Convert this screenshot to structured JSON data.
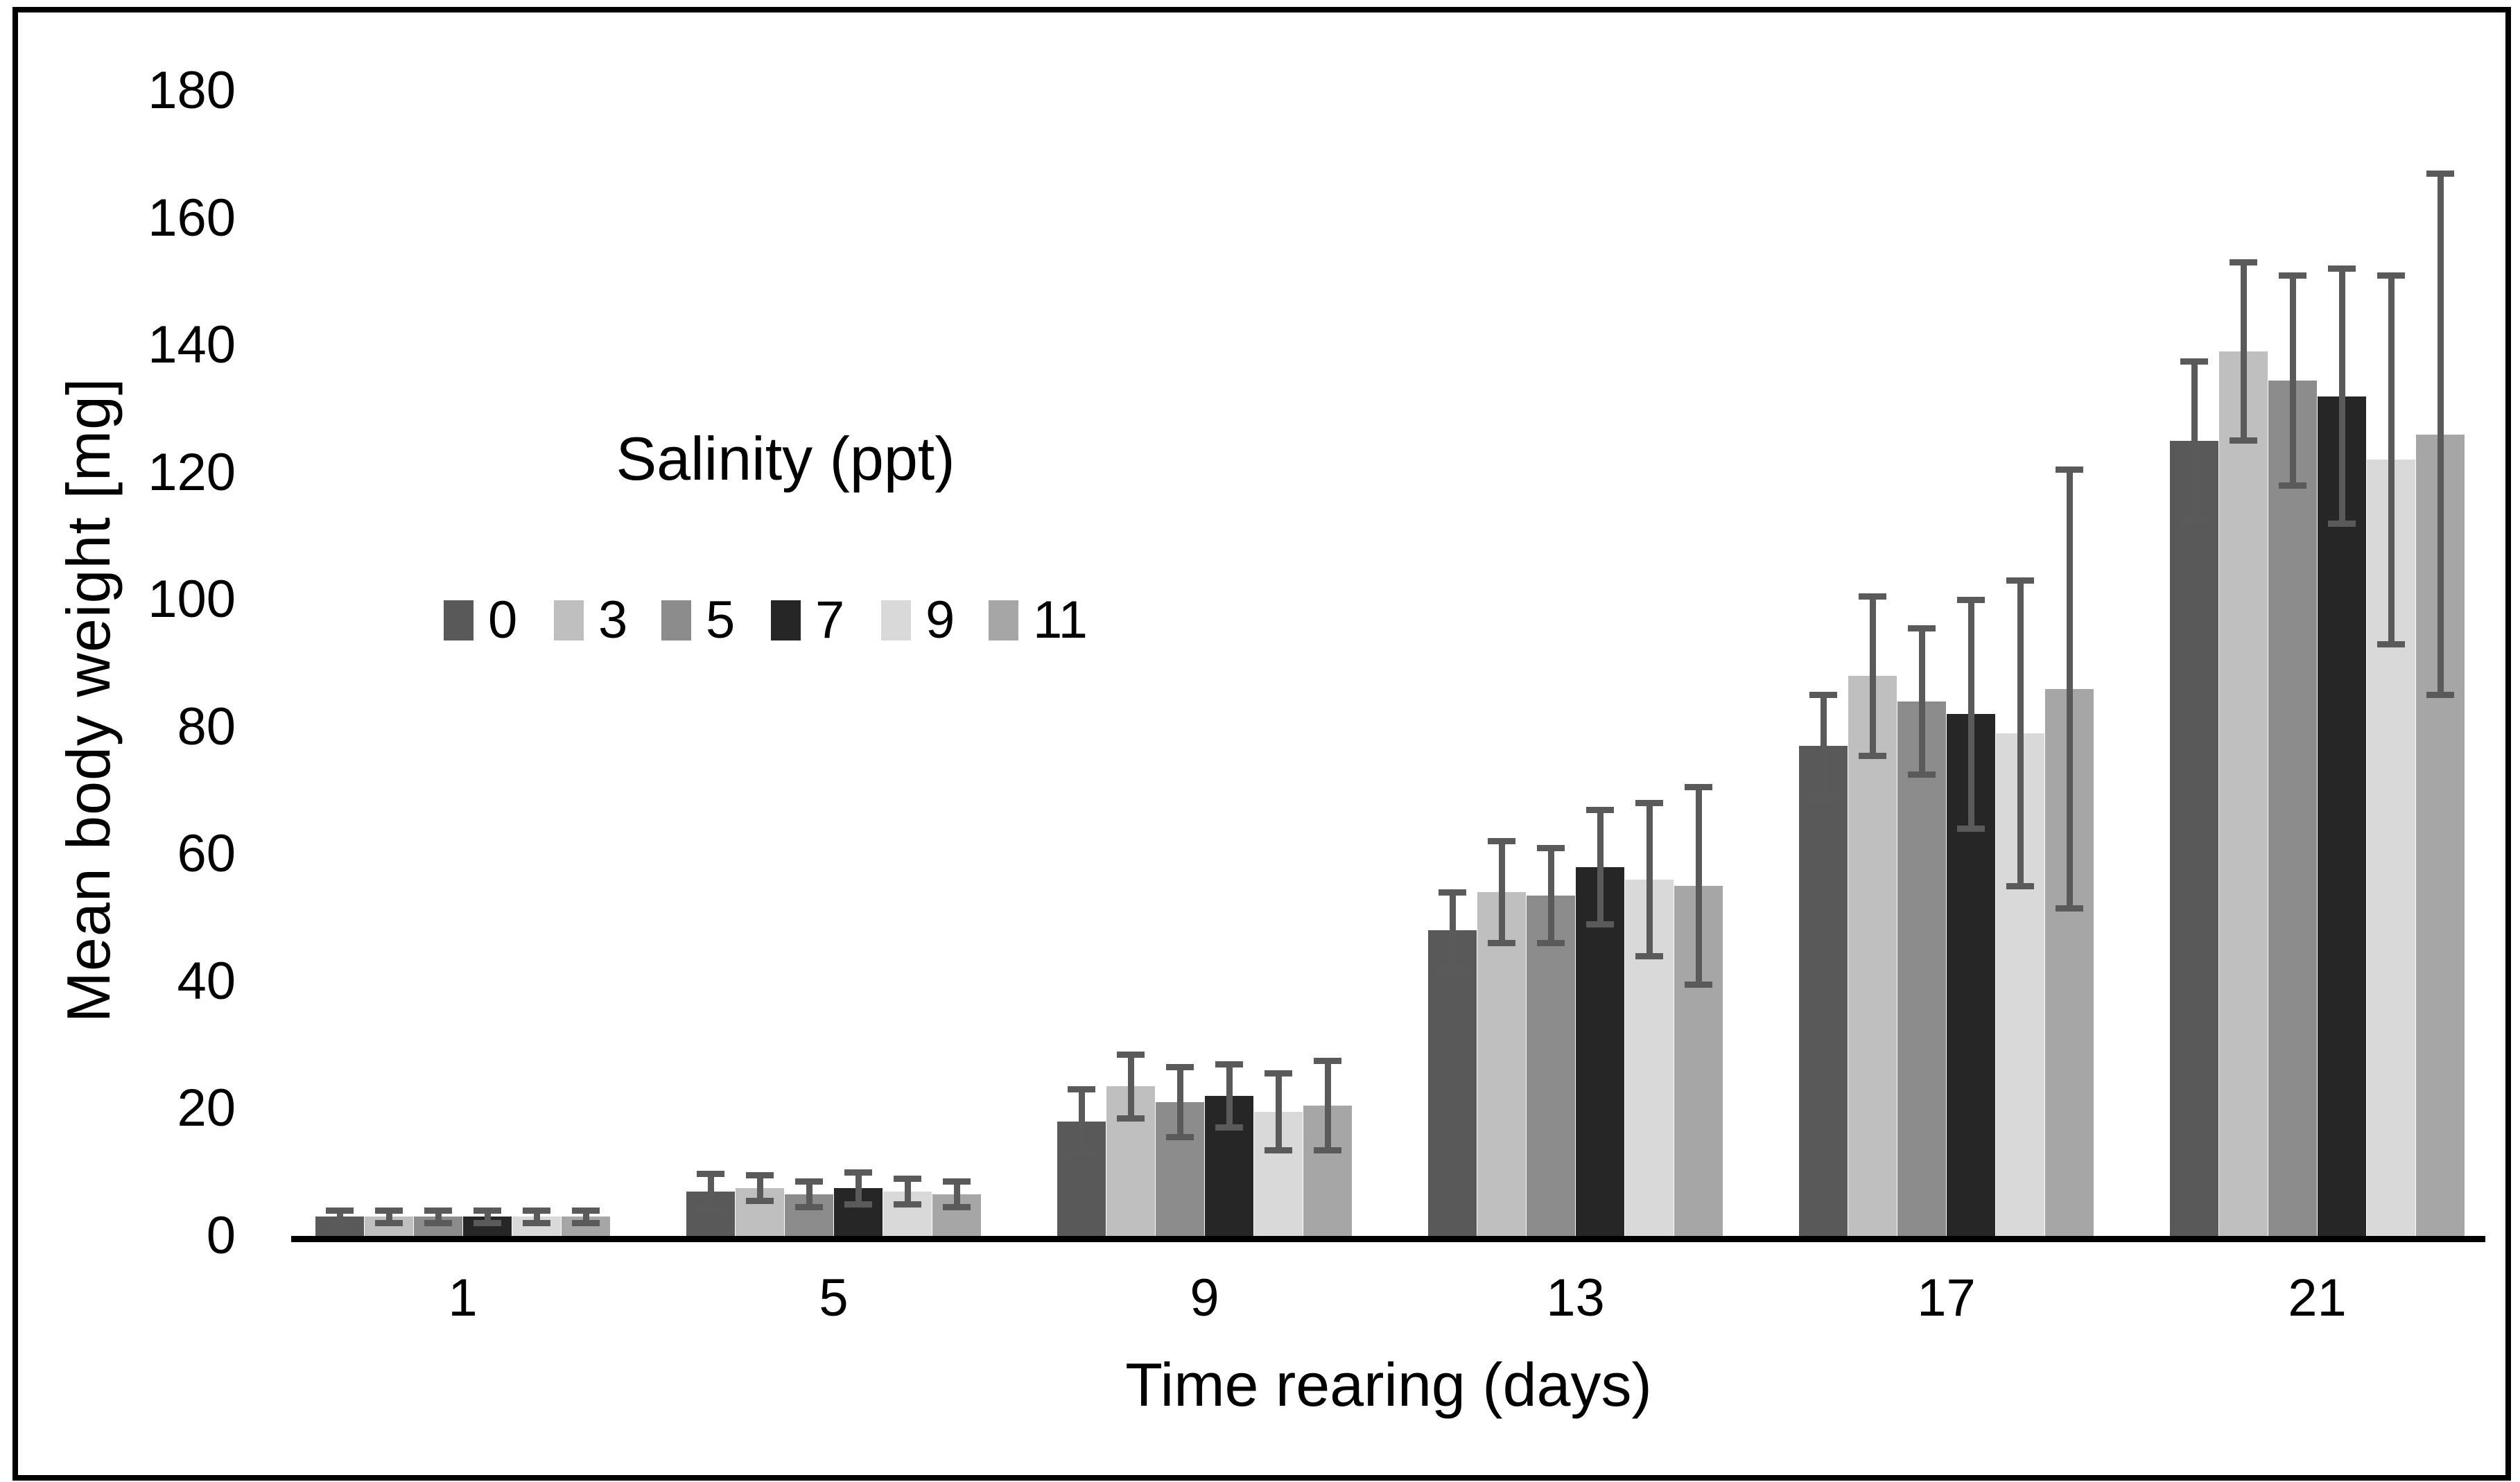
{
  "figure": {
    "background": "#ffffff",
    "border_color": "#000000",
    "text_color": "#000000"
  },
  "chart_data": {
    "type": "bar",
    "title": "",
    "ylabel": "Mean body weight [mg]",
    "xlabel": "Time rearing (days)",
    "legend_title": "Salinity (ppt)",
    "legend_position": "inside upper-left",
    "grid": false,
    "categories": [
      "1",
      "5",
      "9",
      "13",
      "17",
      "21"
    ],
    "ylim": [
      0,
      180
    ],
    "ytick_step": 20,
    "ytick_labels": [
      "0",
      "20",
      "40",
      "60",
      "80",
      "100",
      "120",
      "140",
      "160",
      "180"
    ],
    "axis_color": "#000000",
    "error_bar_color": "#5a5a5a",
    "series": [
      {
        "name": "0",
        "color": "#595959",
        "values": [
          3,
          7,
          18,
          48,
          77,
          125
        ],
        "errors": [
          1,
          2.8,
          5,
          6,
          8,
          12.5
        ]
      },
      {
        "name": "3",
        "color": "#bfbfbf",
        "values": [
          3,
          7.5,
          23.5,
          54,
          88,
          139
        ],
        "errors": [
          1,
          2,
          5,
          8,
          12.5,
          14
        ]
      },
      {
        "name": "5",
        "color": "#8c8c8c",
        "values": [
          3,
          6.5,
          21,
          53.5,
          84,
          134.5
        ],
        "errors": [
          1,
          2,
          5.5,
          7.5,
          11.5,
          16.5
        ]
      },
      {
        "name": "7",
        "color": "#262626",
        "values": [
          3,
          7.5,
          22,
          58,
          82,
          132
        ],
        "errors": [
          1,
          2.5,
          5,
          9,
          18,
          20
        ]
      },
      {
        "name": "9",
        "color": "#d9d9d9",
        "values": [
          3,
          7,
          19.5,
          56,
          79,
          122
        ],
        "errors": [
          1,
          2,
          6,
          12,
          24,
          29
        ]
      },
      {
        "name": "11",
        "color": "#a6a6a6",
        "values": [
          3,
          6.5,
          20.5,
          55,
          86,
          126
        ],
        "errors": [
          1,
          2,
          7,
          15.5,
          34.5,
          41
        ]
      }
    ]
  }
}
